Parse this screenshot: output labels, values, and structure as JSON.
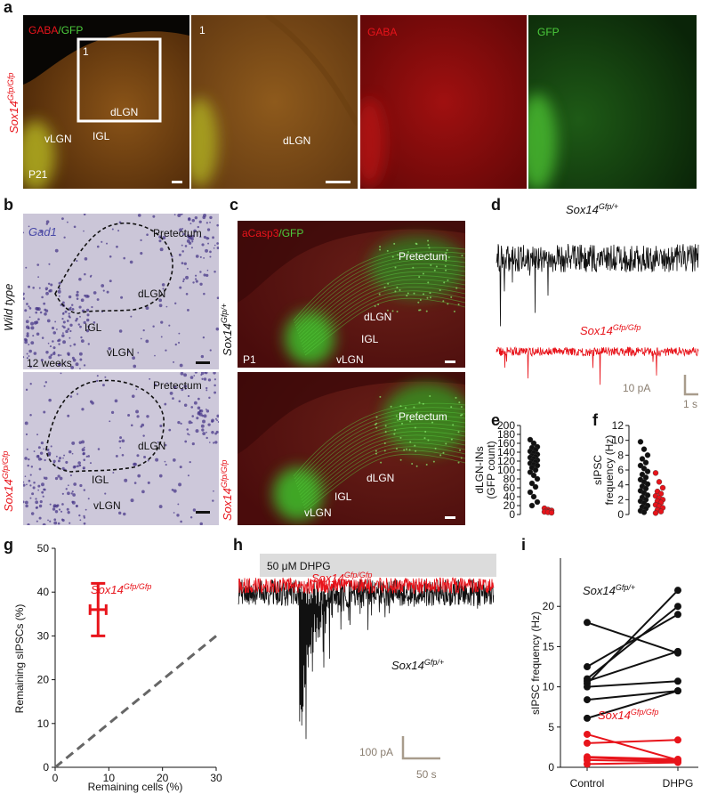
{
  "panels": {
    "a": {
      "letter": "a",
      "stain": {
        "red": "GABA",
        "green": "/GFP"
      },
      "genotype": {
        "gene": "Sox14",
        "allele": "Gfp/Gfp"
      },
      "inset": "1",
      "regions": {
        "dLGN": "dLGN",
        "vLGN": "vLGN",
        "IGL": "IGL"
      },
      "age": "P21",
      "zoom_inset": "1",
      "zoom_region": "dLGN",
      "gaba": "GABA",
      "gfp": "GFP"
    },
    "b": {
      "letter": "b",
      "stain": "Gad1",
      "top": {
        "genotype": "Wild type",
        "age": "12 weeks",
        "regions": [
          "Pretectum",
          "dLGN",
          "IGL",
          "vLGN"
        ]
      },
      "bottom": {
        "genotype": {
          "gene": "Sox14",
          "allele": "Gfp/Gfp"
        },
        "regions": [
          "Pretectum",
          "dLGN",
          "IGL",
          "vLGN"
        ]
      }
    },
    "c": {
      "letter": "c",
      "stain": {
        "red": "aCasp3",
        "green": "/GFP"
      },
      "top": {
        "genotype": {
          "gene": "Sox14",
          "allele": "Gfp/+"
        },
        "age": "P1",
        "regions": [
          "Pretectum",
          "dLGN",
          "IGL",
          "vLGN"
        ]
      },
      "bottom": {
        "genotype": {
          "gene": "Sox14",
          "allele": "Gfp/Gfp"
        },
        "regions": [
          "Pretectum",
          "dLGN",
          "IGL",
          "vLGN"
        ]
      }
    },
    "d": {
      "letter": "d",
      "control": {
        "gene": "Sox14",
        "allele": "Gfp/+"
      },
      "mutant": {
        "gene": "Sox14",
        "allele": "Gfp/Gfp"
      },
      "scale_y": "10 pA",
      "scale_x": "1 s"
    },
    "h": {
      "letter": "h",
      "drug": "50 μM DHPG",
      "mutant": {
        "gene": "Sox14",
        "allele": "Gfp/Gfp"
      },
      "control": {
        "gene": "Sox14",
        "allele": "Gfp/+"
      },
      "scale_y": "100 pA",
      "scale_x": "50 s"
    }
  },
  "chart_data": [
    {
      "type": "strip",
      "letter": "e",
      "ylabel": [
        "dLGN-INs",
        "(GFP count)"
      ],
      "ylim": [
        0,
        200
      ],
      "yticks": [
        0,
        20,
        40,
        60,
        80,
        100,
        120,
        140,
        160,
        180,
        200
      ],
      "series": [
        {
          "color": "#111111",
          "values": [
            168,
            160,
            152,
            150,
            145,
            142,
            138,
            135,
            132,
            130,
            128,
            125,
            122,
            120,
            118,
            115,
            112,
            110,
            105,
            100,
            95,
            88,
            80,
            70,
            62,
            50,
            40,
            28,
            20
          ]
        },
        {
          "color": "#e8141b",
          "values": [
            14,
            11,
            9,
            8,
            7,
            6,
            5,
            4
          ]
        }
      ]
    },
    {
      "type": "strip",
      "letter": "f",
      "ylabel": [
        "sIPSC",
        "frequency (Hz)"
      ],
      "ylim": [
        0,
        12
      ],
      "yticks": [
        0,
        2,
        4,
        6,
        8,
        10,
        12
      ],
      "series": [
        {
          "color": "#111111",
          "values": [
            9.8,
            8.8,
            8,
            7.5,
            7,
            6.6,
            6.2,
            5.8,
            5.4,
            5,
            4.7,
            4.4,
            4.1,
            3.8,
            3.5,
            3.2,
            2.9,
            2.6,
            2.3,
            2,
            1.8,
            1.5,
            1.2,
            1,
            0.8,
            0.5,
            0.3
          ]
        },
        {
          "color": "#e8141b",
          "values": [
            5.6,
            4.4,
            3.6,
            3.1,
            2.8,
            2.5,
            2.2,
            2,
            1.8,
            1.6,
            1.3,
            1.1,
            0.9,
            0.6,
            0.4,
            0.2
          ]
        }
      ]
    },
    {
      "type": "scatter",
      "letter": "g",
      "xlabel": "Remaining cells (%)",
      "ylabel": "Remaining sIPSCs (%)",
      "xlim": [
        0,
        30
      ],
      "ylim": [
        0,
        50
      ],
      "xticks": [
        0,
        10,
        20,
        30
      ],
      "yticks": [
        0,
        10,
        20,
        30,
        40,
        50
      ],
      "diagonal": true,
      "series": [
        {
          "name": "Sox14",
          "allele": "Gfp/Gfp",
          "color": "#e8141b",
          "x": [
            8
          ],
          "values": [
            36
          ],
          "xerr": [
            1.5
          ],
          "yerr": [
            6
          ]
        }
      ]
    },
    {
      "type": "paired",
      "letter": "i",
      "ylabel": "sIPSC frequency (Hz)",
      "categories": [
        "Control",
        "DHPG"
      ],
      "ylim": [
        0,
        26
      ],
      "yticks": [
        0,
        5,
        10,
        15,
        20
      ],
      "series": [
        {
          "name": "Sox14",
          "allele": "Gfp/+",
          "color": "#111111",
          "pairs": [
            [
              18,
              14.2
            ],
            [
              12.5,
              19
            ],
            [
              11,
              20
            ],
            [
              10.7,
              14.4
            ],
            [
              10.4,
              22
            ],
            [
              10,
              10.7
            ],
            [
              8.4,
              9.5
            ],
            [
              6.1,
              9.5
            ]
          ]
        },
        {
          "name": "Sox14",
          "allele": "Gfp/Gfp",
          "color": "#e8141b",
          "pairs": [
            [
              4.1,
              0.9
            ],
            [
              3,
              3.4
            ],
            [
              1.3,
              1
            ],
            [
              1.2,
              0.8
            ],
            [
              0.9,
              0.7
            ],
            [
              0.4,
              0.6
            ]
          ]
        }
      ]
    }
  ]
}
